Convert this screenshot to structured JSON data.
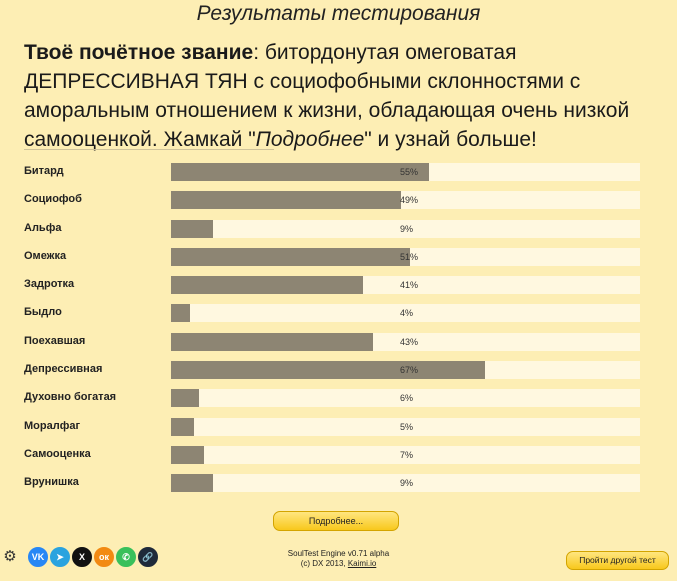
{
  "header": {
    "title": "Результаты тестирования"
  },
  "rank": {
    "label": "Твоё почётное звание",
    "separator": ": ",
    "title_text": "битордонутая омеговатая ДЕПРЕССИВНАЯ ТЯН с социофобными склонностями с аморальным отношением к жизни, обладающая очень низкой самооценкой.",
    "cta_before": " Жамкай \"",
    "cta_emphasis": "Подробнее",
    "cta_after": "\" и узнай больше!"
  },
  "results": [
    {
      "label": "Битард",
      "value": 55,
      "text": "55%"
    },
    {
      "label": "Социофоб",
      "value": 49,
      "text": "49%"
    },
    {
      "label": "Альфа",
      "value": 9,
      "text": "9%"
    },
    {
      "label": "Омежка",
      "value": 51,
      "text": "51%"
    },
    {
      "label": "Задротка",
      "value": 41,
      "text": "41%"
    },
    {
      "label": "Быдло",
      "value": 4,
      "text": "4%"
    },
    {
      "label": "Поехавшая",
      "value": 43,
      "text": "43%"
    },
    {
      "label": "Депрессивная",
      "value": 67,
      "text": "67%"
    },
    {
      "label": "Духовно богатая",
      "value": 6,
      "text": "6%"
    },
    {
      "label": "Моралфаг",
      "value": 5,
      "text": "5%"
    },
    {
      "label": "Самооценка",
      "value": 7,
      "text": "7%"
    },
    {
      "label": "Врунишка",
      "value": 9,
      "text": "9%"
    }
  ],
  "buttons": {
    "more": "Подробнее...",
    "other_test": "Пройти другой тест"
  },
  "footer": {
    "engine": "SoulTest Engine v0.71 alpha",
    "copyright_prefix": "(c) DX 2013, ",
    "site": "Kaimi.io"
  },
  "social": [
    {
      "name": "vk-icon",
      "glyph": "VK",
      "color": "#2787f5"
    },
    {
      "name": "telegram-icon",
      "glyph": "➤",
      "color": "#2aa3df"
    },
    {
      "name": "x-icon",
      "glyph": "X",
      "color": "#111111"
    },
    {
      "name": "odnoklassniki-icon",
      "glyph": "ок",
      "color": "#f28a12"
    },
    {
      "name": "whatsapp-icon",
      "glyph": "✆",
      "color": "#39c05b"
    },
    {
      "name": "link-icon",
      "glyph": "🔗",
      "color": "#1f2a3a"
    }
  ],
  "colors": {
    "background": "#fdeeb4",
    "bar_fill": "#8d8573",
    "bar_track": "#fff8e0",
    "button": "#f8c81c"
  }
}
